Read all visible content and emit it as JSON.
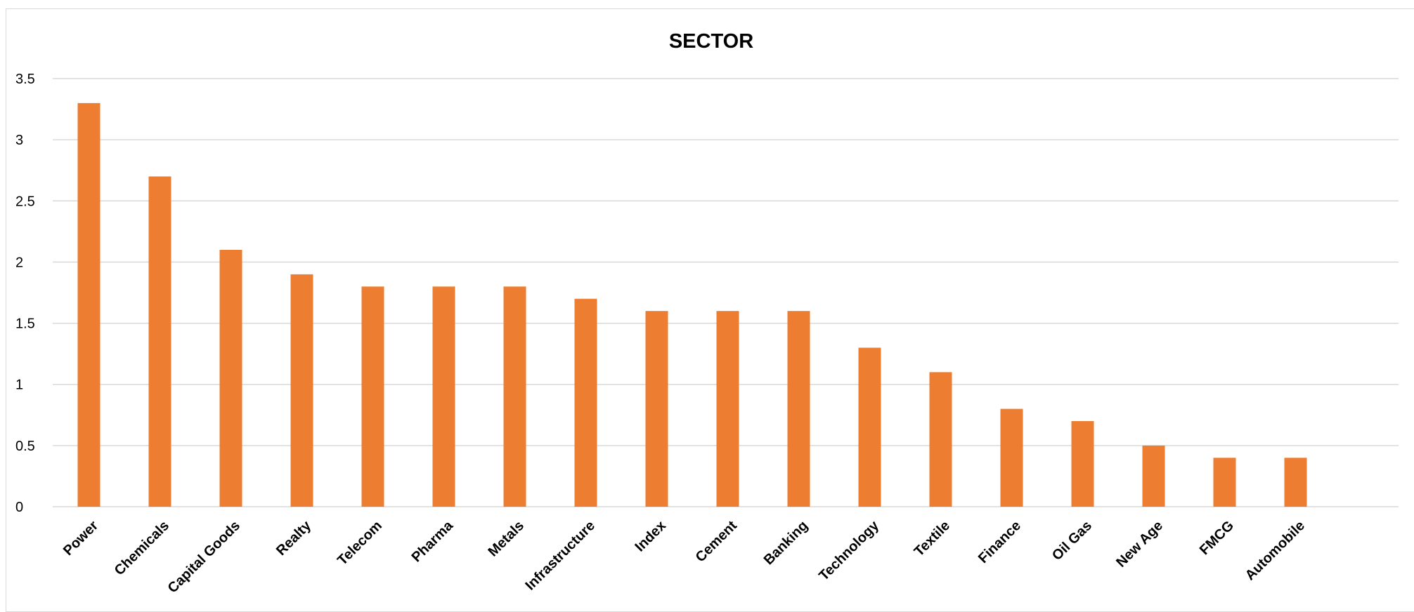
{
  "chart_data": {
    "type": "bar",
    "title": "SECTOR",
    "xlabel": "",
    "ylabel": "",
    "categories": [
      "Power",
      "Chemicals",
      "Capital Goods",
      "Realty",
      "Telecom",
      "Pharma",
      "Metals",
      "Infrastructure",
      "Index",
      "Cement",
      "Banking",
      "Technology",
      "Textile",
      "Finance",
      "Oil Gas",
      "New Age",
      "FMCG",
      "Automobile"
    ],
    "values": [
      3.3,
      2.7,
      2.1,
      1.9,
      1.8,
      1.8,
      1.8,
      1.7,
      1.6,
      1.6,
      1.6,
      1.3,
      1.1,
      0.8,
      0.7,
      0.5,
      0.4,
      0.4
    ],
    "ylim": [
      0,
      3.5
    ],
    "yticks": [
      "0",
      "0.5",
      "1",
      "1.5",
      "2",
      "2.5",
      "3",
      "3.5"
    ],
    "grid": "horizontal",
    "legend": "none",
    "bar_color": "#ED7D31",
    "grid_color": "#D9D9D9"
  }
}
